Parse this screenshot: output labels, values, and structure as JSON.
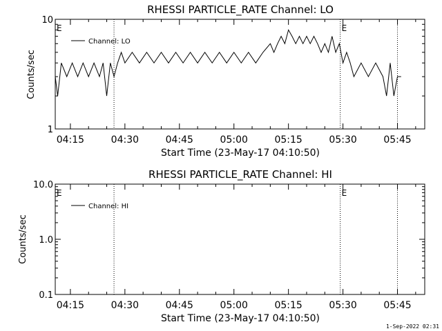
{
  "footer": {
    "timestamp": "1-Sep-2022 02:31"
  },
  "chart_data": [
    {
      "type": "line",
      "title": "RHESSI PARTICLE_RATE Channel: LO",
      "xlabel": "Start Time (23-May-17 04:10:50)",
      "ylabel": "Counts/sec",
      "yscale": "log",
      "ylim": [
        1,
        10
      ],
      "ytick_values": [
        1,
        10
      ],
      "ytick_labels": [
        "1",
        "10"
      ],
      "xlim": [
        "04:10:50",
        "05:52:30"
      ],
      "xtick_labels": [
        "04:15",
        "04:30",
        "04:45",
        "05:00",
        "05:15",
        "05:30",
        "05:45"
      ],
      "grid": false,
      "legend": "top-left",
      "event_lines": [
        "04:27:00",
        "05:29:15",
        "05:45:00"
      ],
      "event_markers": [
        {
          "label": "E",
          "time": "04:10:50"
        },
        {
          "label": "E",
          "time": "05:29:15"
        }
      ],
      "series": [
        {
          "name": "Channel: LO",
          "x": [
            "04:10:50",
            "04:11:30",
            "04:12:30",
            "04:14:00",
            "04:15:30",
            "04:17:00",
            "04:18:30",
            "04:20:00",
            "04:21:30",
            "04:23:00",
            "04:24:00",
            "04:25:00",
            "04:26:00",
            "04:27:00",
            "04:28:00",
            "04:29:00",
            "04:30:00",
            "04:32:00",
            "04:34:00",
            "04:36:00",
            "04:38:00",
            "04:40:00",
            "04:42:00",
            "04:44:00",
            "04:46:00",
            "04:48:00",
            "04:50:00",
            "04:52:00",
            "04:54:00",
            "04:56:00",
            "04:58:00",
            "05:00:00",
            "05:02:00",
            "05:04:00",
            "05:06:00",
            "05:08:00",
            "05:10:00",
            "05:11:00",
            "05:12:00",
            "05:13:00",
            "05:14:00",
            "05:15:00",
            "05:16:00",
            "05:17:00",
            "05:18:00",
            "05:19:00",
            "05:20:00",
            "05:21:00",
            "05:22:00",
            "05:23:00",
            "05:24:00",
            "05:25:00",
            "05:26:00",
            "05:27:00",
            "05:28:00",
            "05:29:00",
            "05:30:00",
            "05:31:00",
            "05:32:00",
            "05:33:00",
            "05:35:00",
            "05:37:00",
            "05:39:00",
            "05:41:00",
            "05:42:00",
            "05:43:00",
            "05:44:00",
            "05:45:00",
            "05:46:00"
          ],
          "y": [
            3,
            2,
            4,
            3,
            4,
            3,
            4,
            3,
            4,
            3,
            4,
            2,
            4,
            3,
            4,
            5,
            4,
            5,
            4,
            5,
            4,
            5,
            4,
            5,
            4,
            5,
            4,
            5,
            4,
            5,
            4,
            5,
            4,
            5,
            4,
            5,
            6,
            5,
            6,
            7,
            6,
            8,
            7,
            6,
            7,
            6,
            7,
            6,
            7,
            6,
            5,
            6,
            5,
            7,
            5,
            6,
            4,
            5,
            4,
            3,
            4,
            3,
            4,
            3,
            2,
            4,
            2,
            3,
            3
          ]
        }
      ]
    },
    {
      "type": "line",
      "title": "RHESSI PARTICLE_RATE Channel: HI",
      "xlabel": "Start Time (23-May-17 04:10:50)",
      "ylabel": "Counts/sec",
      "yscale": "log",
      "ylim": [
        0.1,
        10.0
      ],
      "ytick_values": [
        0.1,
        1.0,
        10.0
      ],
      "ytick_labels": [
        "0.1",
        "1.0",
        "10.0"
      ],
      "xlim": [
        "04:10:50",
        "05:52:30"
      ],
      "xtick_labels": [
        "04:15",
        "04:30",
        "04:45",
        "05:00",
        "05:15",
        "05:30",
        "05:45"
      ],
      "grid": false,
      "legend": "top-left",
      "event_lines": [
        "04:27:00",
        "05:29:15",
        "05:45:00"
      ],
      "event_markers": [
        {
          "label": "E",
          "time": "04:10:50"
        },
        {
          "label": "E",
          "time": "05:29:15"
        }
      ],
      "series": [
        {
          "name": "Channel: HI",
          "x": [],
          "y": []
        }
      ]
    }
  ]
}
